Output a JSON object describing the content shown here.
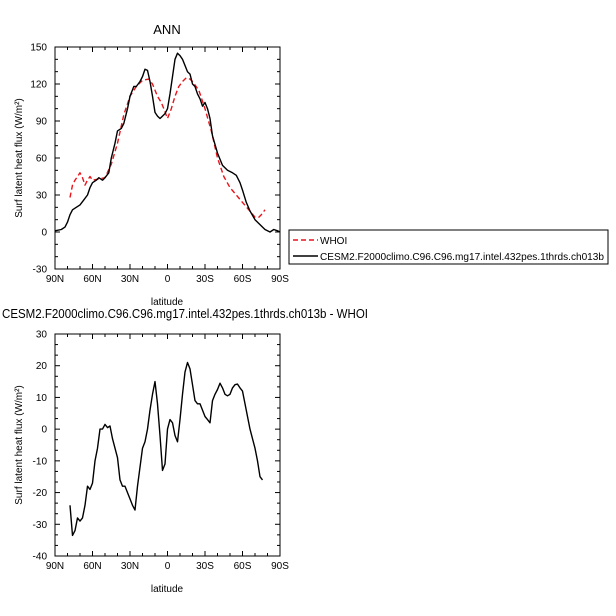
{
  "chart_data": [
    {
      "type": "line",
      "title": "ANN",
      "xlabel": "latitude",
      "ylabel": "Surf latent heat flux (W/m²)",
      "xticks": [
        "90N",
        "60N",
        "30N",
        "0",
        "30S",
        "60S",
        "90S"
      ],
      "xtick_values": [
        -90,
        -60,
        -30,
        0,
        30,
        60,
        90
      ],
      "yticks": [
        "-30",
        "0",
        "30",
        "60",
        "90",
        "120",
        "150"
      ],
      "ytick_values": [
        -30,
        0,
        30,
        60,
        90,
        120,
        150
      ],
      "xlim": [
        -90,
        90
      ],
      "ylim": [
        -30,
        150
      ],
      "legend_position": "right",
      "series": [
        {
          "name": "WHOI",
          "color": "#e8141a",
          "style": "dashed",
          "x": [
            -78,
            -76,
            -74,
            -72,
            -70,
            -68,
            -66,
            -64,
            -62,
            -60,
            -55,
            -50,
            -45,
            -40,
            -35,
            -30,
            -25,
            -20,
            -15,
            -12,
            -10,
            -8,
            -5,
            -3,
            0,
            3,
            6,
            9,
            12,
            15,
            18,
            20,
            25,
            30,
            35,
            40,
            45,
            50,
            55,
            60,
            65,
            70,
            73,
            75,
            78
          ],
          "y": [
            28,
            38,
            42,
            45,
            48,
            44,
            38,
            42,
            45,
            42,
            43,
            44,
            55,
            72,
            95,
            110,
            118,
            123,
            124,
            120,
            115,
            110,
            105,
            100,
            92,
            100,
            110,
            118,
            122,
            125,
            124,
            122,
            115,
            100,
            82,
            60,
            45,
            36,
            30,
            24,
            18,
            12,
            12,
            14,
            18
          ]
        },
        {
          "name": "CESM2.F2000climo.C96.C96.mg17.intel.432pes.1thrds.ch013b",
          "color": "#000000",
          "style": "solid",
          "x": [
            -90,
            -85,
            -82,
            -80,
            -78,
            -76,
            -73,
            -70,
            -67,
            -64,
            -62,
            -60,
            -57,
            -55,
            -52,
            -50,
            -47,
            -45,
            -42,
            -40,
            -37,
            -35,
            -32,
            -30,
            -27,
            -25,
            -22,
            -20,
            -18,
            -16,
            -14,
            -12,
            -10,
            -8,
            -6,
            -4,
            -2,
            0,
            2,
            4,
            6,
            8,
            10,
            12,
            14,
            16,
            18,
            20,
            22,
            24,
            26,
            28,
            30,
            32,
            34,
            36,
            40,
            44,
            48,
            52,
            55,
            58,
            60,
            63,
            66,
            70,
            74,
            78,
            82,
            85,
            88,
            90
          ],
          "y": [
            1,
            2,
            4,
            8,
            14,
            18,
            20,
            22,
            26,
            30,
            36,
            40,
            42,
            44,
            42,
            44,
            48,
            60,
            72,
            82,
            84,
            88,
            100,
            110,
            118,
            118,
            122,
            126,
            132,
            131,
            122,
            110,
            97,
            94,
            92,
            94,
            96,
            100,
            112,
            126,
            140,
            145,
            143,
            140,
            135,
            130,
            128,
            120,
            118,
            112,
            108,
            102,
            105,
            100,
            92,
            78,
            64,
            54,
            50,
            48,
            46,
            40,
            34,
            24,
            17,
            10,
            6,
            2,
            0,
            2,
            1,
            0
          ]
        }
      ]
    },
    {
      "type": "line",
      "title": "CESM2.F2000climo.C96.C96.mg17.intel.432pes.1thrds.ch013b - WHOI",
      "xlabel": "latitude",
      "ylabel": "Surf latent heat flux (W/m²)",
      "xticks": [
        "90N",
        "60N",
        "30N",
        "0",
        "30S",
        "60S",
        "90S"
      ],
      "xtick_values": [
        -90,
        -60,
        -30,
        0,
        30,
        60,
        90
      ],
      "yticks": [
        "-40",
        "-30",
        "-20",
        "-10",
        "0",
        "10",
        "20",
        "30"
      ],
      "ytick_values": [
        -40,
        -30,
        -20,
        -10,
        0,
        10,
        20,
        30
      ],
      "xlim": [
        -90,
        90
      ],
      "ylim": [
        -40,
        30
      ],
      "series": [
        {
          "color": "#000000",
          "style": "solid",
          "x": [
            -78,
            -76,
            -74,
            -72,
            -70,
            -68,
            -66,
            -64,
            -62,
            -60,
            -58,
            -56,
            -54,
            -52,
            -50,
            -48,
            -46,
            -44,
            -42,
            -40,
            -38,
            -36,
            -34,
            -32,
            -30,
            -28,
            -26,
            -24,
            -22,
            -20,
            -18,
            -16,
            -14,
            -12,
            -10,
            -8,
            -6,
            -4,
            -2,
            0,
            2,
            4,
            6,
            8,
            10,
            12,
            14,
            16,
            18,
            20,
            22,
            24,
            26,
            28,
            30,
            32,
            34,
            36,
            38,
            40,
            42,
            44,
            46,
            48,
            50,
            52,
            54,
            56,
            58,
            60,
            62,
            64,
            66,
            68,
            70,
            72,
            74,
            76
          ],
          "y": [
            -24,
            -33.5,
            -32,
            -28,
            -29,
            -28,
            -24,
            -18,
            -19,
            -17,
            -10,
            -6,
            0,
            0,
            1.5,
            0.5,
            1,
            -3,
            -6,
            -9,
            -16,
            -18,
            -18,
            -20,
            -22,
            -24,
            -25.5,
            -18,
            -12,
            -6,
            -4,
            0,
            6,
            11,
            15,
            8,
            -2,
            -13,
            -11,
            0,
            3,
            2,
            -2,
            -4,
            3,
            11,
            18,
            21,
            19,
            14,
            9,
            8,
            8,
            6,
            4,
            3,
            2,
            9,
            11,
            12.5,
            14.5,
            13,
            11,
            10.5,
            11,
            13,
            14,
            14.2,
            13,
            12,
            8,
            4,
            0,
            -3,
            -6,
            -10,
            -15,
            -16
          ]
        }
      ]
    }
  ]
}
